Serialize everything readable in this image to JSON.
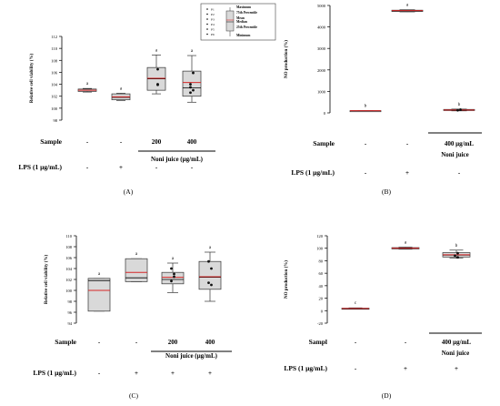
{
  "panels": [
    {
      "id": "A",
      "caption": "(A)",
      "ylabel": "Relative cell viability (%)",
      "ylim": [
        98,
        112
      ],
      "yticks": [
        "98",
        "100",
        "102",
        "104",
        "106",
        "108",
        "110",
        "112"
      ],
      "groups": [
        {
          "sample": "-",
          "lps": "-",
          "letter": "a",
          "min": 102.7,
          "q1": 102.8,
          "median": 103.0,
          "mean": 103.0,
          "q3": 103.2,
          "max": 103.3,
          "points": []
        },
        {
          "sample": "-",
          "lps": "+",
          "letter": "a",
          "min": 101.3,
          "q1": 101.4,
          "median": 101.8,
          "mean": 101.9,
          "q3": 102.4,
          "max": 102.5,
          "points": []
        },
        {
          "sample": "200",
          "lps": "-",
          "letter": "a",
          "min": 102.4,
          "q1": 103.0,
          "median": 104.9,
          "mean": 105.0,
          "q3": 106.8,
          "max": 108.9,
          "points": [
            103.9,
            104.0,
            106.5
          ]
        },
        {
          "sample": "400",
          "lps": "-",
          "letter": "a",
          "min": 101.0,
          "q1": 102.0,
          "median": 103.4,
          "mean": 104.3,
          "q3": 106.2,
          "max": 108.8,
          "points": [
            102.6,
            103.0,
            103.5,
            104.0,
            105.9
          ]
        }
      ],
      "sample_row_label": "Sample",
      "lps_row_label": "LPS  (1  µg/mL)",
      "treatment_label": "Noni  juice  (µg/mL)",
      "legend": {
        "points": [
          "P1",
          "P2",
          "P3",
          "P4",
          "P5",
          "P6"
        ],
        "labels": [
          "Maximum",
          "75th Percentile",
          "Mean",
          "Median",
          "25th Percentile",
          "Minimum"
        ]
      }
    },
    {
      "id": "B",
      "caption": "(B)",
      "ylabel": "NO production (%)",
      "ylim": [
        0,
        5000
      ],
      "yticks": [
        "0",
        "1000",
        "2000",
        "3000",
        "4000",
        "5000"
      ],
      "groups": [
        {
          "sample": "-",
          "lps": "-",
          "letter": "b",
          "min": 90,
          "q1": 95,
          "median": 100,
          "mean": 100,
          "q3": 105,
          "max": 110,
          "points": []
        },
        {
          "sample": "-",
          "lps": "+",
          "letter": "a",
          "min": 4700,
          "q1": 4720,
          "median": 4750,
          "mean": 4760,
          "q3": 4780,
          "max": 4800,
          "points": []
        },
        {
          "sample": "400  µg/mL",
          "lps": "-",
          "letter": "b",
          "min": 95,
          "q1": 110,
          "median": 130,
          "mean": 135,
          "q3": 160,
          "max": 175,
          "points": [
            120,
            150
          ]
        }
      ],
      "sample_row_label": "Sample",
      "lps_row_label": "LPS  (1  µg/mL)",
      "treatment_label": "Noni  juice"
    },
    {
      "id": "C",
      "caption": "(C)",
      "ylabel": "Relative cell viability (%)",
      "ylim": [
        94,
        110
      ],
      "yticks": [
        "94",
        "96",
        "98",
        "100",
        "102",
        "104",
        "106",
        "108",
        "110"
      ],
      "groups": [
        {
          "sample": "-",
          "lps": "-",
          "letter": "a",
          "min": 96.2,
          "q1": 96.2,
          "median": 101.8,
          "mean": 100.0,
          "q3": 102.2,
          "max": 102.2,
          "points": []
        },
        {
          "sample": "-",
          "lps": "+",
          "letter": "a",
          "min": 101.6,
          "q1": 101.6,
          "median": 102.3,
          "mean": 103.3,
          "q3": 105.8,
          "max": 105.8,
          "points": []
        },
        {
          "sample": "200",
          "lps": "+",
          "letter": "a",
          "min": 99.6,
          "q1": 101.2,
          "median": 102.0,
          "mean": 102.4,
          "q3": 103.3,
          "max": 105.0,
          "points": [
            101.7,
            102.5,
            103.0,
            104.0
          ]
        },
        {
          "sample": "400",
          "lps": "+",
          "letter": "a",
          "min": 98.0,
          "q1": 100.2,
          "median": 102.4,
          "mean": 102.5,
          "q3": 105.3,
          "max": 107.0,
          "points": [
            101.0,
            101.4,
            104.0,
            105.3
          ]
        }
      ],
      "sample_row_label": "Sample",
      "lps_row_label": "LPS  (1  µg/mL)",
      "treatment_label": "Noni  juice  (µg/mL)"
    },
    {
      "id": "D",
      "caption": "(D)",
      "ylabel": "NO production (%)",
      "ylim": [
        -20,
        120
      ],
      "yticks": [
        "-20",
        "0",
        "20",
        "40",
        "60",
        "80",
        "100",
        "120"
      ],
      "groups": [
        {
          "sample": "-",
          "lps": "-",
          "letter": "c",
          "min": 2.5,
          "q1": 3.0,
          "median": 3.5,
          "mean": 3.6,
          "q3": 4.0,
          "max": 4.5,
          "points": []
        },
        {
          "sample": "-",
          "lps": "+",
          "letter": "a",
          "min": 98.5,
          "q1": 99.0,
          "median": 100.0,
          "mean": 100.2,
          "q3": 101.0,
          "max": 101.8,
          "points": []
        },
        {
          "sample": "400  µg/mL",
          "lps": "+",
          "letter": "b",
          "min": 84.0,
          "q1": 86.0,
          "median": 89.0,
          "mean": 89.5,
          "q3": 93.0,
          "max": 97.0,
          "points": [
            85.5,
            88.0,
            92.0
          ]
        }
      ],
      "sample_row_label": "Sampl",
      "lps_row_label": "LPS  (1  µg/mL)",
      "treatment_label": "Noni  juice"
    }
  ],
  "chart_data": [
    {
      "type": "box",
      "panel": "(A)",
      "ylabel": "Relative cell viability (%)",
      "ylim": [
        98,
        112
      ],
      "categories": [
        "Sample - / LPS -",
        "Sample - / LPS +",
        "Noni juice 200 / LPS -",
        "Noni juice 400 / LPS -"
      ],
      "median": [
        103.0,
        101.8,
        104.9,
        103.4
      ],
      "mean": [
        103.0,
        101.9,
        105.0,
        104.3
      ],
      "q1": [
        102.8,
        101.4,
        103.0,
        102.0
      ],
      "q3": [
        103.2,
        102.4,
        106.8,
        106.2
      ],
      "min": [
        102.7,
        101.3,
        102.4,
        101.0
      ],
      "max": [
        103.3,
        102.5,
        108.9,
        108.8
      ],
      "significance_letters": [
        "a",
        "a",
        "a",
        "a"
      ]
    },
    {
      "type": "box",
      "panel": "(B)",
      "ylabel": "NO production (%)",
      "ylim": [
        0,
        5000
      ],
      "categories": [
        "Sample - / LPS -",
        "Sample - / LPS +",
        "Noni juice 400 µg/mL / LPS -"
      ],
      "median": [
        100,
        4750,
        130
      ],
      "mean": [
        100,
        4760,
        135
      ],
      "q1": [
        95,
        4720,
        110
      ],
      "q3": [
        105,
        4780,
        160
      ],
      "min": [
        90,
        4700,
        95
      ],
      "max": [
        110,
        4800,
        175
      ],
      "significance_letters": [
        "b",
        "a",
        "b"
      ]
    },
    {
      "type": "box",
      "panel": "(C)",
      "ylabel": "Relative cell viability (%)",
      "ylim": [
        94,
        110
      ],
      "categories": [
        "Sample - / LPS -",
        "Sample - / LPS +",
        "Noni juice 200 / LPS +",
        "Noni juice 400 / LPS +"
      ],
      "median": [
        101.8,
        102.3,
        102.0,
        102.4
      ],
      "mean": [
        100.0,
        103.3,
        102.4,
        102.5
      ],
      "q1": [
        96.2,
        101.6,
        101.2,
        100.2
      ],
      "q3": [
        102.2,
        105.8,
        103.3,
        105.3
      ],
      "min": [
        96.2,
        101.6,
        99.6,
        98.0
      ],
      "max": [
        102.2,
        105.8,
        105.0,
        107.0
      ],
      "significance_letters": [
        "a",
        "a",
        "a",
        "a"
      ]
    },
    {
      "type": "box",
      "panel": "(D)",
      "ylabel": "NO production (%)",
      "ylim": [
        -20,
        120
      ],
      "categories": [
        "Sample - / LPS -",
        "Sample - / LPS +",
        "Noni juice 400 µg/mL / LPS +"
      ],
      "median": [
        3.5,
        100.0,
        89.0
      ],
      "mean": [
        3.6,
        100.2,
        89.5
      ],
      "q1": [
        3.0,
        99.0,
        86.0
      ],
      "q3": [
        4.0,
        101.0,
        93.0
      ],
      "min": [
        2.5,
        98.5,
        84.0
      ],
      "max": [
        4.5,
        101.8,
        97.0
      ],
      "significance_letters": [
        "c",
        "a",
        "b"
      ]
    }
  ],
  "colors": {
    "mean_line": "#d62728",
    "box_fill": "#d9d9d9",
    "box_stroke": "#333333",
    "axis": "#000000"
  }
}
